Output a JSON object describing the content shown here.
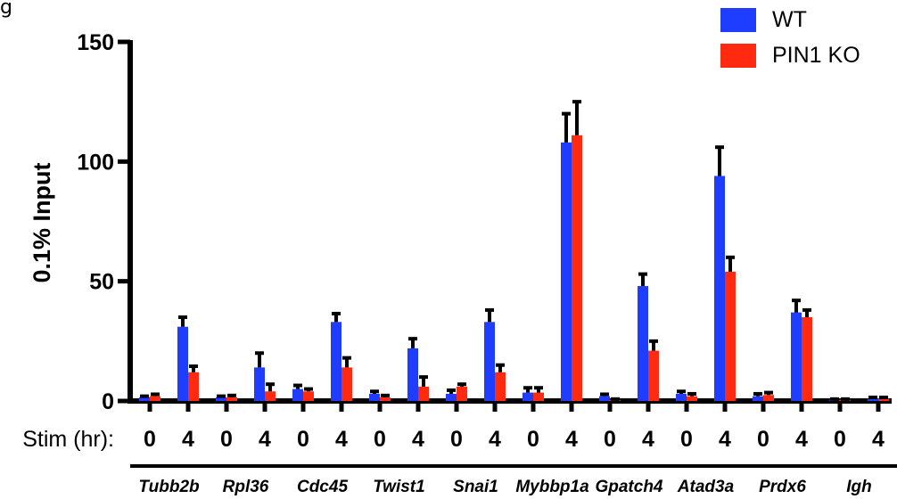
{
  "panel_letter": "g",
  "colors": {
    "wt": "#1f3dff",
    "ko": "#ff2a10",
    "axis": "#000000"
  },
  "chart_data": {
    "type": "bar",
    "title": "",
    "xlabel": "",
    "ylabel": "0.1% Input",
    "ylim": [
      0,
      150
    ],
    "yticks": [
      0,
      50,
      100,
      150
    ],
    "stim_label": "Stim (hr):",
    "timepoints": [
      "0",
      "4"
    ],
    "genes": [
      "Tubb2b",
      "Rpl36",
      "Cdc45",
      "Twist1",
      "Snai1",
      "Mybbp1a",
      "Gpatch4",
      "Atad3a",
      "Prdx6",
      "Igh"
    ],
    "legend": {
      "position": "top-right",
      "entries": [
        "WT",
        "PIN1 KO"
      ]
    },
    "series": [
      {
        "name": "WT",
        "values": [
          [
            1.5,
            31
          ],
          [
            1.5,
            14
          ],
          [
            5,
            33
          ],
          [
            3,
            22
          ],
          [
            3,
            33
          ],
          [
            3.5,
            108
          ],
          [
            2,
            48
          ],
          [
            3,
            94
          ],
          [
            2,
            37
          ],
          [
            0.5,
            1
          ]
        ],
        "errors": [
          [
            0.5,
            4
          ],
          [
            0.5,
            6
          ],
          [
            1.5,
            3.5
          ],
          [
            1,
            4
          ],
          [
            1.5,
            5
          ],
          [
            2,
            12
          ],
          [
            0.8,
            5
          ],
          [
            1,
            12
          ],
          [
            1,
            5
          ],
          [
            0.3,
            0.5
          ]
        ]
      },
      {
        "name": "PIN1 KO",
        "values": [
          [
            2,
            12
          ],
          [
            1.5,
            4
          ],
          [
            4,
            14
          ],
          [
            1.5,
            6
          ],
          [
            6,
            12
          ],
          [
            3.5,
            111
          ],
          [
            0.5,
            21
          ],
          [
            2,
            54
          ],
          [
            2.5,
            35
          ],
          [
            0.5,
            1
          ]
        ],
        "errors": [
          [
            0.8,
            2.5
          ],
          [
            0.8,
            3
          ],
          [
            1,
            4
          ],
          [
            0.8,
            4
          ],
          [
            1,
            3
          ],
          [
            2,
            14
          ],
          [
            0.3,
            4
          ],
          [
            1,
            6
          ],
          [
            1,
            3
          ],
          [
            0.3,
            0.5
          ]
        ]
      }
    ]
  }
}
